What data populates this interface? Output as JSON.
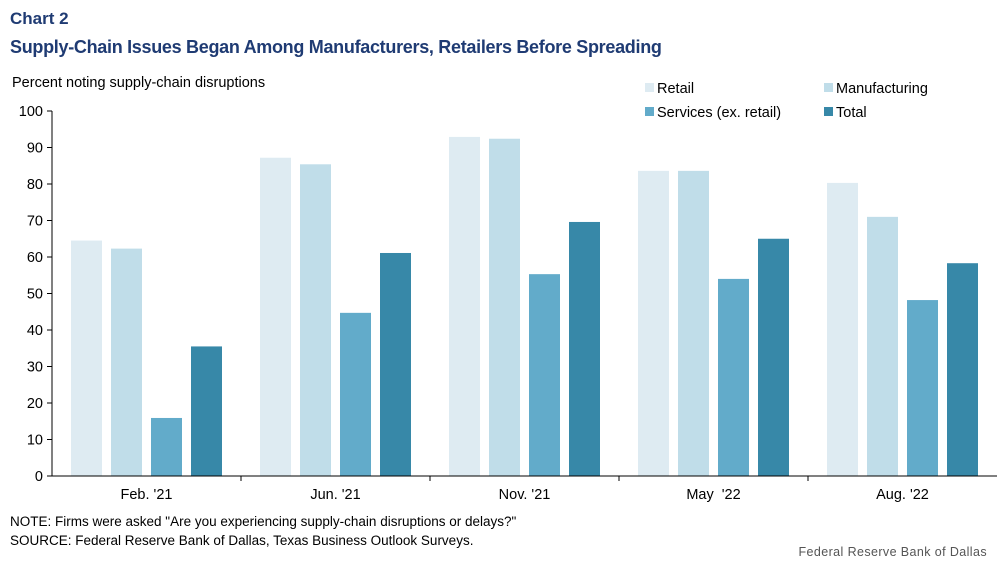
{
  "header": {
    "label": "Chart 2",
    "title": "Supply-Chain Issues Began Among Manufacturers, Retailers Before Spreading"
  },
  "chart_data": {
    "type": "bar",
    "ylabel": "Percent noting supply-chain disruptions",
    "ylim": [
      0,
      100
    ],
    "yticks": [
      0,
      10,
      20,
      30,
      40,
      50,
      60,
      70,
      80,
      90,
      100
    ],
    "grid": false,
    "legend_position": "top-right",
    "categories": [
      "Feb. '21",
      "Jun. '21",
      "Nov. '21",
      "May  '22",
      "Aug. '22"
    ],
    "series": [
      {
        "name": "Retail",
        "color": "#deebf2",
        "values": [
          64.5,
          87.2,
          92.9,
          83.6,
          80.3
        ]
      },
      {
        "name": "Manufacturing",
        "color": "#c0dde9",
        "values": [
          62.3,
          85.4,
          92.4,
          83.6,
          71.0
        ]
      },
      {
        "name": "Services (ex. retail)",
        "color": "#62abca",
        "values": [
          15.9,
          44.7,
          55.3,
          54.0,
          48.2
        ]
      },
      {
        "name": "Total",
        "color": "#3788a8",
        "values": [
          35.5,
          61.1,
          69.6,
          65.0,
          58.3
        ]
      }
    ]
  },
  "footer": {
    "note": "NOTE: Firms were asked \"Are you experiencing supply-chain disruptions or delays?\"",
    "source": "SOURCE: Federal Reserve Bank of Dallas, Texas Business Outlook Surveys.",
    "credit": "Federal Reserve Bank of Dallas"
  }
}
